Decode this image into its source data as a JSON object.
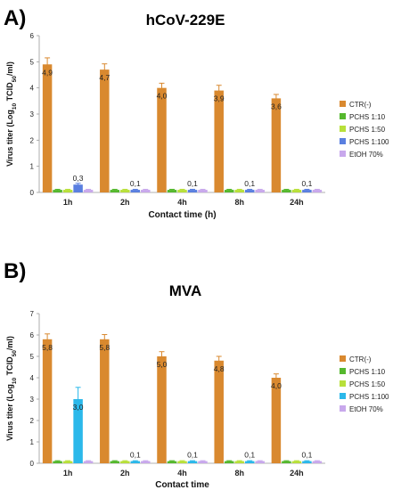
{
  "chart_data": [
    {
      "panel": "A)",
      "type": "bar",
      "title": "hCoV-229E",
      "xlabel": "Contact time (h)",
      "ylabel": "Virus titer (Log10 TCID50/ml)",
      "ylim": [
        0,
        6
      ],
      "yticks": [
        0,
        1,
        2,
        3,
        4,
        5,
        6
      ],
      "categories": [
        "1h",
        "2h",
        "4h",
        "8h",
        "24h"
      ],
      "series": [
        {
          "name": "CTR(-)",
          "color": "#d9892f",
          "values": [
            4.9,
            4.7,
            4.0,
            3.9,
            3.6
          ],
          "errors": [
            0.25,
            0.22,
            0.18,
            0.2,
            0.15
          ]
        },
        {
          "name": "PCHS 1:10",
          "color": "#55b82e",
          "values": [
            0.1,
            0.1,
            0.1,
            0.1,
            0.1
          ],
          "errors": [
            0.02,
            0.02,
            0.02,
            0.02,
            0.02
          ]
        },
        {
          "name": "PCHS 1:50",
          "color": "#b8e03a",
          "values": [
            0.1,
            0.1,
            0.1,
            0.1,
            0.1
          ],
          "errors": [
            0.02,
            0.02,
            0.02,
            0.02,
            0.02
          ]
        },
        {
          "name": "PCHS 1:100",
          "color": "#5a7fe0",
          "values": [
            0.3,
            0.1,
            0.1,
            0.1,
            0.1
          ],
          "errors": [
            0.05,
            0.02,
            0.02,
            0.02,
            0.02
          ]
        },
        {
          "name": "EtOH 70%",
          "color": "#c8a8ec",
          "values": [
            0.1,
            0.1,
            0.1,
            0.1,
            0.1
          ],
          "errors": [
            0.02,
            0.02,
            0.02,
            0.02,
            0.02
          ]
        }
      ],
      "data_labels": [
        {
          "category": "1h",
          "series": "CTR(-)",
          "text": "4,9"
        },
        {
          "category": "2h",
          "series": "CTR(-)",
          "text": "4,7"
        },
        {
          "category": "4h",
          "series": "CTR(-)",
          "text": "4,0"
        },
        {
          "category": "8h",
          "series": "CTR(-)",
          "text": "3,9"
        },
        {
          "category": "24h",
          "series": "CTR(-)",
          "text": "3,6"
        },
        {
          "category": "1h",
          "series": "PCHS 1:100",
          "text": "0,3"
        },
        {
          "category": "2h",
          "series": "PCHS 1:100",
          "text": "0,1"
        },
        {
          "category": "4h",
          "series": "PCHS 1:100",
          "text": "0,1"
        },
        {
          "category": "8h",
          "series": "PCHS 1:100",
          "text": "0,1"
        },
        {
          "category": "24h",
          "series": "PCHS 1:100",
          "text": "0,1"
        }
      ],
      "legend_position": "right"
    },
    {
      "panel": "B)",
      "type": "bar",
      "title": "MVA",
      "xlabel": "Contact time",
      "ylabel": "Virus titer (Log10 TCID50/ml)",
      "ylim": [
        0,
        7
      ],
      "yticks": [
        0,
        1,
        2,
        3,
        4,
        5,
        6,
        7
      ],
      "categories": [
        "1h",
        "2h",
        "4h",
        "8h",
        "24h"
      ],
      "series": [
        {
          "name": "CTR(-)",
          "color": "#d9892f",
          "values": [
            5.8,
            5.8,
            5.0,
            4.8,
            4.0
          ],
          "errors": [
            0.25,
            0.22,
            0.22,
            0.2,
            0.18
          ]
        },
        {
          "name": "PCHS 1:10",
          "color": "#55b82e",
          "values": [
            0.1,
            0.1,
            0.1,
            0.1,
            0.1
          ],
          "errors": [
            0.02,
            0.02,
            0.02,
            0.02,
            0.02
          ]
        },
        {
          "name": "PCHS 1:50",
          "color": "#b8e03a",
          "values": [
            0.1,
            0.1,
            0.1,
            0.1,
            0.1
          ],
          "errors": [
            0.02,
            0.02,
            0.02,
            0.02,
            0.02
          ]
        },
        {
          "name": "PCHS 1:100",
          "color": "#2bb8ea",
          "values": [
            3.0,
            0.1,
            0.1,
            0.1,
            0.1
          ],
          "errors": [
            0.55,
            0.02,
            0.02,
            0.02,
            0.02
          ]
        },
        {
          "name": "EtOH 70%",
          "color": "#c8a8ec",
          "values": [
            0.1,
            0.1,
            0.1,
            0.1,
            0.1
          ],
          "errors": [
            0.02,
            0.02,
            0.02,
            0.02,
            0.02
          ]
        }
      ],
      "data_labels": [
        {
          "category": "1h",
          "series": "CTR(-)",
          "text": "5,8"
        },
        {
          "category": "2h",
          "series": "CTR(-)",
          "text": "5,8"
        },
        {
          "category": "4h",
          "series": "CTR(-)",
          "text": "5,0"
        },
        {
          "category": "8h",
          "series": "CTR(-)",
          "text": "4,8"
        },
        {
          "category": "24h",
          "series": "CTR(-)",
          "text": "4,0"
        },
        {
          "category": "1h",
          "series": "PCHS 1:100",
          "text": "3,0"
        },
        {
          "category": "2h",
          "series": "PCHS 1:100",
          "text": "0,1"
        },
        {
          "category": "4h",
          "series": "PCHS 1:100",
          "text": "0,1"
        },
        {
          "category": "8h",
          "series": "PCHS 1:100",
          "text": "0,1"
        },
        {
          "category": "24h",
          "series": "PCHS 1:100",
          "text": "0,1"
        }
      ],
      "legend_position": "right"
    }
  ]
}
